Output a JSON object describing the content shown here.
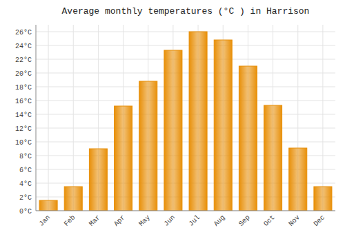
{
  "chart_data": {
    "type": "bar",
    "title": "Average monthly temperatures (°C ) in Harrison",
    "categories": [
      "Jan",
      "Feb",
      "Mar",
      "Apr",
      "May",
      "Jun",
      "Jul",
      "Aug",
      "Sep",
      "Oct",
      "Nov",
      "Dec"
    ],
    "values": [
      1.5,
      3.5,
      9.0,
      15.2,
      18.8,
      23.3,
      26.0,
      24.8,
      21.0,
      15.3,
      9.1,
      3.5
    ],
    "color": "#E8900A",
    "ylim": [
      0,
      27
    ],
    "yticks": [
      {
        "value": 0,
        "label": "0°C"
      },
      {
        "value": 2,
        "label": "2°C"
      },
      {
        "value": 4,
        "label": "4°C"
      },
      {
        "value": 6,
        "label": "6°C"
      },
      {
        "value": 8,
        "label": "8°C"
      },
      {
        "value": 10,
        "label": "10°C"
      },
      {
        "value": 12,
        "label": "12°C"
      },
      {
        "value": 14,
        "label": "14°C"
      },
      {
        "value": 16,
        "label": "16°C"
      },
      {
        "value": 18,
        "label": "18°C"
      },
      {
        "value": 20,
        "label": "20°C"
      },
      {
        "value": 22,
        "label": "22°C"
      },
      {
        "value": 24,
        "label": "24°C"
      },
      {
        "value": 26,
        "label": "26°C"
      }
    ],
    "grid": true
  }
}
